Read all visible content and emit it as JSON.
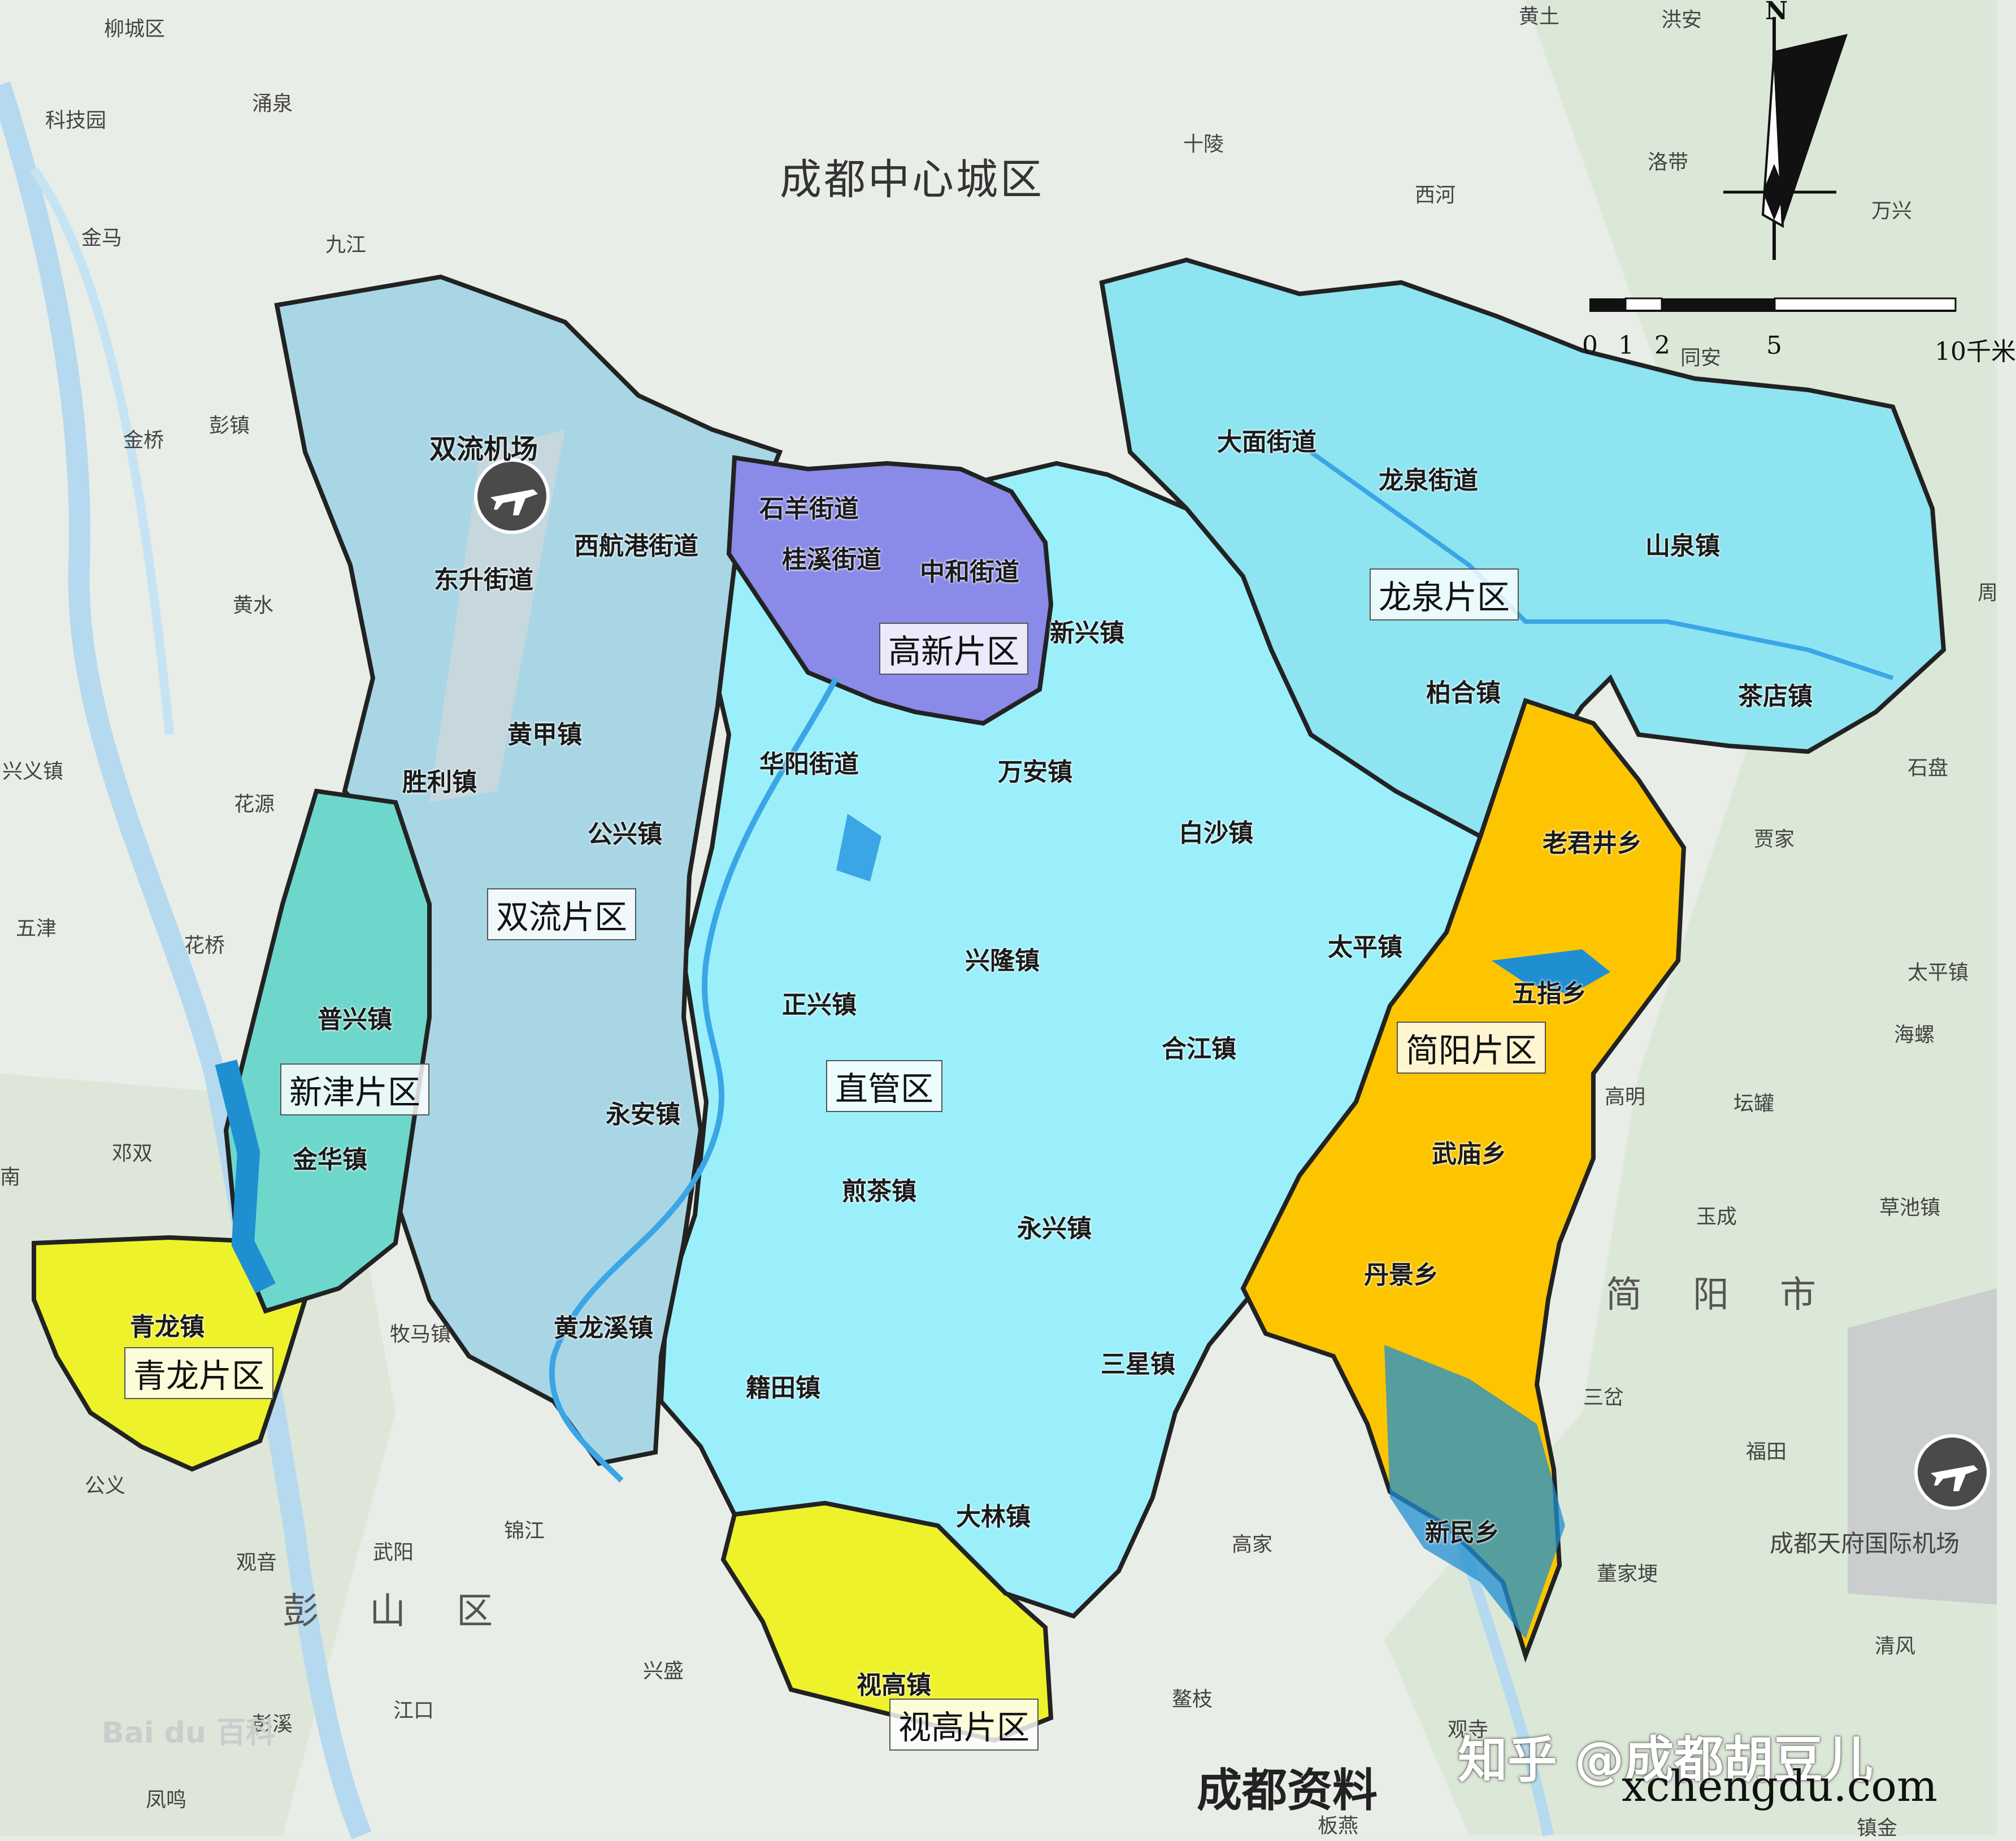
{
  "map": {
    "top_region": "成都中心城区",
    "districts": [
      {
        "id": "shuangliu",
        "label": "双流片区",
        "color": "#a8d4e2"
      },
      {
        "id": "gaoxin",
        "label": "高新片区",
        "color": "#8a8ae8"
      },
      {
        "id": "longquan",
        "label": "龙泉片区",
        "color": "#8ee4f0"
      },
      {
        "id": "zhiguan",
        "label": "直管区",
        "color": "#9aeffa"
      },
      {
        "id": "jianyang",
        "label": "简阳片区",
        "color": "#fcc500"
      },
      {
        "id": "xinjin",
        "label": "新津片区",
        "color": "#6dd7cc"
      },
      {
        "id": "qinglong",
        "label": "青龙片区",
        "color": "#eef22a"
      },
      {
        "id": "shigao",
        "label": "视高片区",
        "color": "#eef22a"
      }
    ],
    "towns": {
      "shuangliu_airport": "双流机场",
      "dongsheng": "东升街道",
      "xihanggang": "西航港街道",
      "shiyang": "石羊街道",
      "guixi": "桂溪街道",
      "zhonghe": "中和街道",
      "xinxing": "新兴镇",
      "huangjia": "黄甲镇",
      "shengli": "胜利镇",
      "huayang": "华阳街道",
      "gongxing": "公兴镇",
      "wanan": "万安镇",
      "baisha": "白沙镇",
      "damian": "大面街道",
      "longquan_jd": "龙泉街道",
      "shanquan": "山泉镇",
      "baihe": "柏合镇",
      "chadian": "茶店镇",
      "laojunjing": "老君井乡",
      "wuzhi": "五指乡",
      "wumiao": "武庙乡",
      "danjing": "丹景乡",
      "xinmin": "新民乡",
      "taiping": "太平镇",
      "xinglong": "兴隆镇",
      "zhengxing": "正兴镇",
      "hejiang": "合江镇",
      "puxing": "普兴镇",
      "jinhua": "金华镇",
      "yongan": "永安镇",
      "jiancha": "煎茶镇",
      "yongxing": "永兴镇",
      "huanglongxi": "黄龙溪镇",
      "qinglong": "青龙镇",
      "jitian": "籍田镇",
      "sanxing": "三星镇",
      "dalin": "大林镇",
      "shigao": "视高镇"
    },
    "context_places": {
      "liuchengqu": "柳城区",
      "keji": "科技园",
      "yongquan": "涌泉",
      "jinma": "金马",
      "jiujiang": "九江",
      "jinqiao": "金桥",
      "pengzhen": "彭镇",
      "huangshui": "黄水",
      "xingyi": "兴义镇",
      "huayuan": "花源",
      "wujin": "五津",
      "huaqiao": "花桥",
      "dengshuang": "邓双",
      "nan": "南",
      "muma": "牧马镇",
      "gongyi": "公义",
      "guanyin": "观音",
      "wuyang": "武阳",
      "jinjiang": "锦江",
      "pengshanqu": "彭山区",
      "xingsheng": "兴盛",
      "jiangkou": "江口",
      "pengxi": "彭溪",
      "fengming": "凤鸣",
      "huangtu": "黄土",
      "hongan": "洪安",
      "shiling": "十陵",
      "xihe": "西河",
      "luodai": "洛带",
      "wanxing": "万兴",
      "tongan": "同安",
      "shipan": "石盘",
      "jiajia": "贾家",
      "taipingzhen2": "太平镇",
      "hailuo": "海螺",
      "gaoming": "高明",
      "tanlu": "坛罐",
      "yucheng": "玉成",
      "caochi": "草池镇",
      "jianyangshi": "简阳市",
      "sancha": "三岔",
      "futian": "福田",
      "gaojia": "高家",
      "dongjiageng": "董家埂",
      "tianfu_airport": "成都天府国际机场",
      "qingfeng": "清风",
      "aogou": "鳌枝",
      "shuangsi": "观寺",
      "banyan": "板燕",
      "zhenjin": "镇金",
      "zhou": "周"
    },
    "watermarks": {
      "zhihu": "知乎 @成都胡豆儿",
      "site": "xchengdu.com",
      "source": "成都资料",
      "baidu": "Bai du 百科"
    }
  },
  "scale_bar": {
    "ticks": [
      "0",
      "1",
      "2",
      "5",
      "10千米"
    ]
  },
  "north_arrow": {
    "label": "N",
    "icon": "north-arrow-icon"
  },
  "airport_icon": "airplane-icon"
}
